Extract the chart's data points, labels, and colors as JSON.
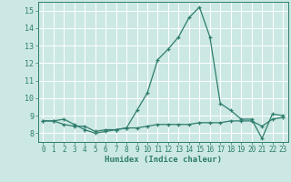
{
  "xlabel": "Humidex (Indice chaleur)",
  "x": [
    0,
    1,
    2,
    3,
    4,
    5,
    6,
    7,
    8,
    9,
    10,
    11,
    12,
    13,
    14,
    15,
    16,
    17,
    18,
    19,
    20,
    21,
    22,
    23
  ],
  "line1": [
    8.7,
    8.7,
    8.8,
    8.5,
    8.2,
    8.0,
    8.1,
    8.2,
    8.3,
    9.3,
    10.3,
    12.2,
    12.8,
    13.5,
    14.6,
    15.2,
    13.5,
    9.7,
    9.3,
    8.8,
    8.8,
    7.7,
    9.1,
    9.0
  ],
  "line2": [
    8.7,
    8.7,
    8.5,
    8.4,
    8.4,
    8.1,
    8.2,
    8.2,
    8.3,
    8.3,
    8.4,
    8.5,
    8.5,
    8.5,
    8.5,
    8.6,
    8.6,
    8.6,
    8.7,
    8.7,
    8.7,
    8.4,
    8.8,
    8.9
  ],
  "line_color": "#2e7d6e",
  "bg_color": "#cce8e4",
  "grid_color": "#b0d8d2",
  "ylim": [
    7.5,
    15.5
  ],
  "xlim": [
    -0.5,
    23.5
  ],
  "yticks": [
    8,
    9,
    10,
    11,
    12,
    13,
    14,
    15
  ],
  "xticks": [
    0,
    1,
    2,
    3,
    4,
    5,
    6,
    7,
    8,
    9,
    10,
    11,
    12,
    13,
    14,
    15,
    16,
    17,
    18,
    19,
    20,
    21,
    22,
    23
  ],
  "tick_fontsize": 5.5,
  "xlabel_fontsize": 6.5
}
